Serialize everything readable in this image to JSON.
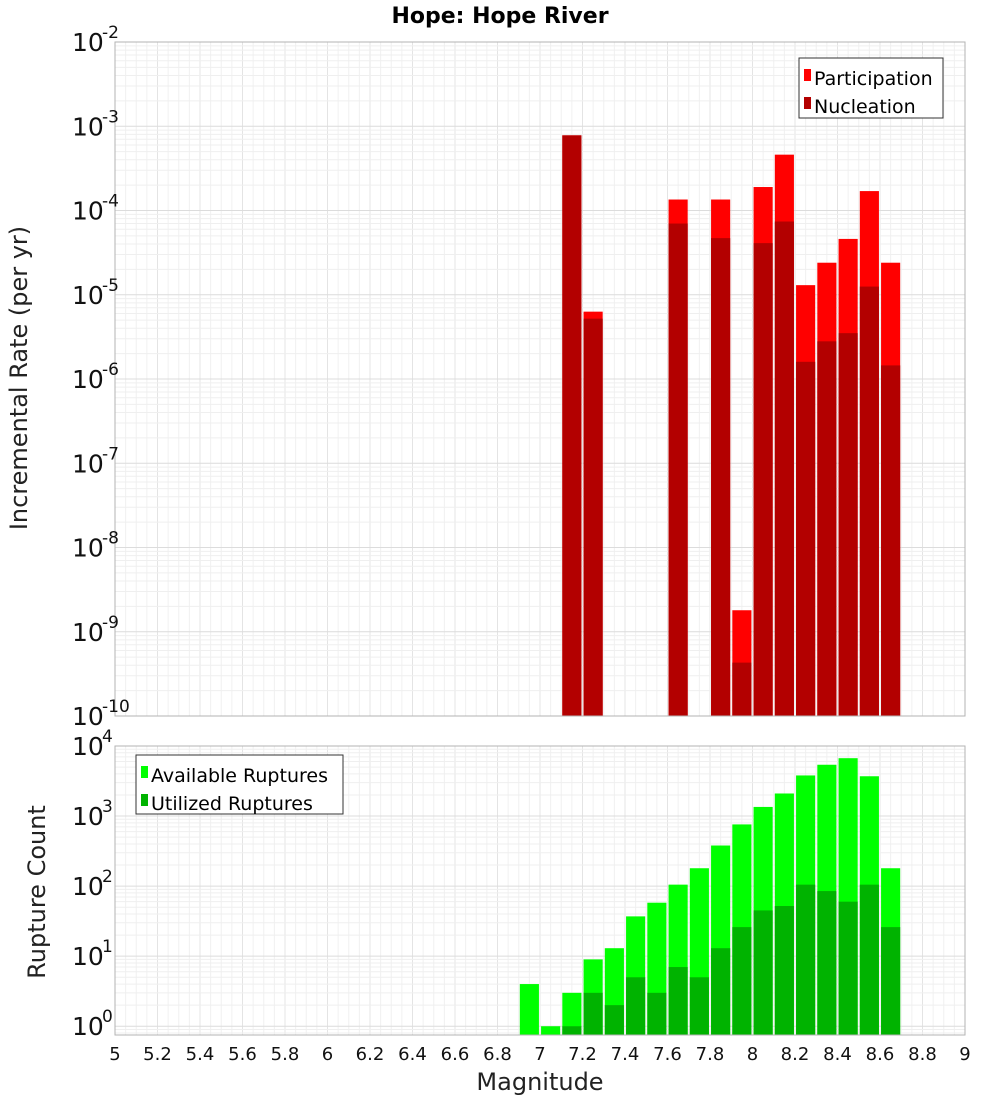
{
  "chart_data": [
    {
      "type": "bar",
      "title": "Hope: Hope River",
      "xlabel": "",
      "ylabel": "Incremental Rate (per yr)",
      "yscale": "log",
      "xlim": [
        5,
        9
      ],
      "ylim": [
        1e-10,
        0.01
      ],
      "y_tick_exponents": [
        -10,
        -9,
        -8,
        -7,
        -6,
        -5,
        -4,
        -3,
        -2
      ],
      "grid": true,
      "legend_position": "top-right",
      "bar_width": 0.09,
      "colors": {
        "Participation": "#ff0000",
        "Nucleation": "#b30000"
      },
      "x": [
        7.15,
        7.25,
        7.65,
        7.85,
        7.95,
        8.05,
        8.15,
        8.25,
        8.35,
        8.45,
        8.55,
        8.65
      ],
      "series": [
        {
          "name": "Participation",
          "values": [
            0.00078,
            6.3e-06,
            0.000135,
            0.000135,
            1.8e-09,
            0.00019,
            0.00046,
            1.3e-05,
            2.4e-05,
            4.6e-05,
            0.00017,
            2.4e-05
          ]
        },
        {
          "name": "Nucleation",
          "values": [
            0.00078,
            5.2e-06,
            7e-05,
            4.7e-05,
            4.3e-10,
            4.1e-05,
            7.4e-05,
            1.6e-06,
            2.8e-06,
            3.5e-06,
            1.25e-05,
            1.45e-06
          ]
        }
      ]
    },
    {
      "type": "bar",
      "title": "",
      "xlabel": "Magnitude",
      "ylabel": "Rupture Count",
      "yscale": "log",
      "xlim": [
        5,
        9
      ],
      "ylim": [
        0.75,
        10000
      ],
      "y_tick_exponents": [
        0,
        1,
        2,
        3,
        4
      ],
      "x_ticks": [
        "5",
        "5.2",
        "5.4",
        "5.6",
        "5.8",
        "6",
        "6.2",
        "6.4",
        "6.6",
        "6.8",
        "7",
        "7.2",
        "7.4",
        "7.6",
        "7.8",
        "8",
        "8.2",
        "8.4",
        "8.6",
        "8.8",
        "9"
      ],
      "grid": true,
      "legend_position": "top-left",
      "bar_width": 0.09,
      "colors": {
        "Available Ruptures": "#00ff00",
        "Utilized Ruptures": "#00b300"
      },
      "x": [
        6.95,
        7.05,
        7.15,
        7.25,
        7.35,
        7.45,
        7.55,
        7.65,
        7.75,
        7.85,
        7.95,
        8.05,
        8.15,
        8.25,
        8.35,
        8.45,
        8.55,
        8.65
      ],
      "series": [
        {
          "name": "Available Ruptures",
          "values": [
            4,
            1,
            3,
            9,
            13,
            37,
            58,
            105,
            180,
            380,
            760,
            1350,
            2100,
            3800,
            5400,
            6700,
            3700,
            180
          ]
        },
        {
          "name": "Utilized Ruptures",
          "values": [
            0,
            0,
            1,
            3,
            2,
            5,
            3,
            7,
            5,
            13,
            26,
            45,
            52,
            105,
            85,
            60,
            105,
            26
          ]
        }
      ]
    }
  ]
}
